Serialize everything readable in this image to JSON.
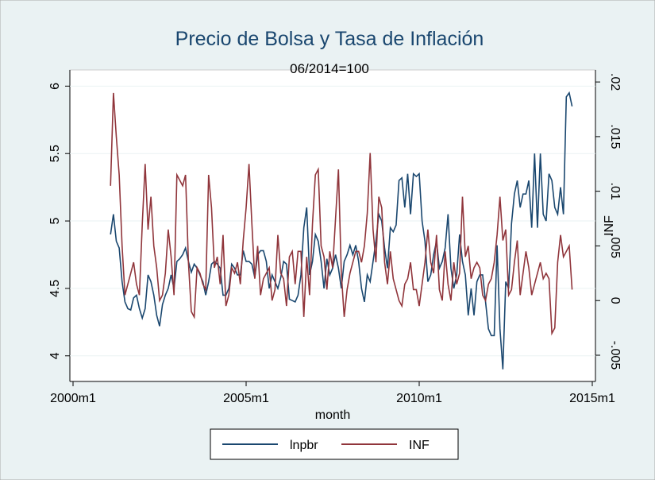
{
  "chart_data": {
    "type": "line",
    "title": "Precio de Bolsa y Tasa de Inflación",
    "subtitle": "06/2014=100",
    "x_label": "month",
    "y2_label": "INF",
    "x": [
      "2001m2",
      "2001m3",
      "2001m4",
      "2001m5",
      "2001m6",
      "2001m7",
      "2001m8",
      "2001m9",
      "2001m10",
      "2001m11",
      "2001m12",
      "2002m1",
      "2002m2",
      "2002m3",
      "2002m4",
      "2002m5",
      "2002m6",
      "2002m7",
      "2002m8",
      "2002m9",
      "2002m10",
      "2002m11",
      "2002m12",
      "2003m1",
      "2003m2",
      "2003m3",
      "2003m4",
      "2003m5",
      "2003m6",
      "2003m7",
      "2003m8",
      "2003m9",
      "2003m10",
      "2003m11",
      "2003m12",
      "2004m1",
      "2004m2",
      "2004m3",
      "2004m4",
      "2004m5",
      "2004m6",
      "2004m7",
      "2004m8",
      "2004m9",
      "2004m10",
      "2004m11",
      "2004m12",
      "2005m1",
      "2005m2",
      "2005m3",
      "2005m4",
      "2005m5",
      "2005m6",
      "2005m7",
      "2005m8",
      "2005m9",
      "2005m10",
      "2005m11",
      "2005m12",
      "2006m1",
      "2006m2",
      "2006m3",
      "2006m4",
      "2006m5",
      "2006m6",
      "2006m7",
      "2006m8",
      "2006m9",
      "2006m10",
      "2006m11",
      "2006m12",
      "2007m1",
      "2007m2",
      "2007m3",
      "2007m4",
      "2007m5",
      "2007m6",
      "2007m7",
      "2007m8",
      "2007m9",
      "2007m10",
      "2007m11",
      "2007m12",
      "2008m1",
      "2008m2",
      "2008m3",
      "2008m4",
      "2008m5",
      "2008m6",
      "2008m7",
      "2008m8",
      "2008m9",
      "2008m10",
      "2008m11",
      "2008m12",
      "2009m1",
      "2009m2",
      "2009m3",
      "2009m4",
      "2009m5",
      "2009m6",
      "2009m7",
      "2009m8",
      "2009m9",
      "2009m10",
      "2009m11",
      "2009m12",
      "2010m1",
      "2010m2",
      "2010m3",
      "2010m4",
      "2010m5",
      "2010m6",
      "2010m7",
      "2010m8",
      "2010m9",
      "2010m10",
      "2010m11",
      "2010m12",
      "2011m1",
      "2011m2",
      "2011m3",
      "2011m4",
      "2011m5",
      "2011m6",
      "2011m7",
      "2011m8",
      "2011m9",
      "2011m10",
      "2011m11",
      "2011m12",
      "2012m1",
      "2012m2",
      "2012m3",
      "2012m4",
      "2012m5",
      "2012m6",
      "2012m7",
      "2012m8",
      "2012m9",
      "2012m10",
      "2012m11",
      "2012m12",
      "2013m1",
      "2013m2",
      "2013m3",
      "2013m4",
      "2013m5",
      "2013m6",
      "2013m7",
      "2013m8",
      "2013m9",
      "2013m10",
      "2013m11",
      "2013m12",
      "2014m1",
      "2014m2",
      "2014m3",
      "2014m4",
      "2014m5",
      "2014m6"
    ],
    "series": [
      {
        "name": "lnpbr",
        "color": "#1a476f",
        "axis": "y",
        "values": [
          4.9,
          5.05,
          4.85,
          4.8,
          4.55,
          4.4,
          4.35,
          4.34,
          4.43,
          4.45,
          4.35,
          4.28,
          4.35,
          4.6,
          4.55,
          4.45,
          4.3,
          4.22,
          4.38,
          4.45,
          4.5,
          4.6,
          4.5,
          4.7,
          4.72,
          4.75,
          4.8,
          4.7,
          4.62,
          4.68,
          4.65,
          4.6,
          4.55,
          4.45,
          4.55,
          4.68,
          4.7,
          4.68,
          4.65,
          4.45,
          4.45,
          4.5,
          4.68,
          4.65,
          4.6,
          4.6,
          4.78,
          4.7,
          4.7,
          4.68,
          4.58,
          4.75,
          4.78,
          4.78,
          4.7,
          4.5,
          4.6,
          4.55,
          4.5,
          4.58,
          4.7,
          4.68,
          4.42,
          4.41,
          4.4,
          4.45,
          4.6,
          4.95,
          5.1,
          4.6,
          4.7,
          4.9,
          4.85,
          4.7,
          4.5,
          4.72,
          4.6,
          4.65,
          4.75,
          4.65,
          4.5,
          4.7,
          4.75,
          4.82,
          4.75,
          4.82,
          4.7,
          4.5,
          4.4,
          4.6,
          4.55,
          4.7,
          4.85,
          5.05,
          5.0,
          4.8,
          4.65,
          4.95,
          4.92,
          4.97,
          5.3,
          5.32,
          5.1,
          5.35,
          5.05,
          5.35,
          5.33,
          5.35,
          5.0,
          4.85,
          4.55,
          4.6,
          4.75,
          4.85,
          4.65,
          4.7,
          4.8,
          5.05,
          4.65,
          4.5,
          4.6,
          4.9,
          4.7,
          4.6,
          4.3,
          4.5,
          4.3,
          4.55,
          4.6,
          4.6,
          4.4,
          4.2,
          4.15,
          4.15,
          4.82,
          4.2,
          3.9,
          4.55,
          4.5,
          4.98,
          5.2,
          5.3,
          5.1,
          5.2,
          5.2,
          5.3,
          4.95,
          5.5,
          4.95,
          5.5,
          5.05,
          5.0,
          5.35,
          5.3,
          5.1,
          5.05,
          5.25,
          5.05,
          5.92,
          5.95,
          5.85
        ]
      },
      {
        "name": "INF",
        "color": "#90353b",
        "axis": "y2",
        "values": [
          0.0105,
          0.019,
          0.015,
          0.0115,
          0.005,
          0.0005,
          0.0015,
          0.0025,
          0.0035,
          0.0015,
          0.0005,
          0.007,
          0.0125,
          0.0065,
          0.0095,
          0.005,
          0.003,
          0,
          0.0005,
          0.0025,
          0.0065,
          0.004,
          0.0005,
          0.0115,
          0.011,
          0.0105,
          0.0115,
          0.0035,
          -0.001,
          -0.0015,
          0.003,
          0.0025,
          0.0015,
          0.001,
          0.0115,
          0.0085,
          0.003,
          0.004,
          0.0015,
          0.006,
          -0.0005,
          0.0005,
          0.003,
          0.0025,
          0.0035,
          0.0015,
          0.0055,
          0.0085,
          0.0125,
          0.007,
          0.002,
          0.005,
          0.0005,
          0.002,
          0.0025,
          0.003,
          0,
          0.001,
          0.006,
          0.0025,
          0.002,
          -0.0005,
          0.004,
          0.0045,
          0.0015,
          0.0045,
          0.0045,
          -0.0015,
          0.004,
          0.0005,
          0.007,
          0.0115,
          0.012,
          0.005,
          0.004,
          0.001,
          0.0045,
          0.003,
          0.0075,
          0.012,
          0.0025,
          -0.0015,
          0.001,
          0.0025,
          0.0035,
          0.0045,
          0.0045,
          0.0035,
          0.005,
          0.008,
          0.0135,
          0.0065,
          0.0035,
          0.0095,
          0.0085,
          0.0035,
          0.0015,
          0.0045,
          0.002,
          0.001,
          0,
          -0.0005,
          0.0015,
          0.002,
          0.0035,
          0.001,
          0.001,
          -0.0005,
          0.0015,
          0.0035,
          0.0065,
          0.0035,
          0.0025,
          0.006,
          0.001,
          0,
          0.0045,
          0.0015,
          0,
          0.0035,
          0.0015,
          0.0025,
          0.0095,
          0.004,
          0.005,
          0.002,
          0.003,
          0.0035,
          0.003,
          0.0005,
          0,
          0.0015,
          0.002,
          0.0035,
          0.006,
          0.0095,
          0.0055,
          0.0065,
          0.0005,
          0.001,
          0.0035,
          0.0055,
          0.0005,
          0.0025,
          0.0045,
          0.003,
          0.0005,
          0.0015,
          0.0025,
          0.0035,
          0.002,
          0.0025,
          0.002,
          -0.003,
          -0.0025,
          0.0035,
          0.006,
          0.004,
          0.0045,
          0.005,
          0.001
        ]
      }
    ],
    "xlim": [
      "2000m1",
      "2015m1"
    ],
    "xticks": [
      "2000m1",
      "2005m1",
      "2010m1",
      "2015m1"
    ],
    "ylim": [
      3.81,
      6.12
    ],
    "yticks": [
      4,
      4.5,
      5,
      5.5,
      6
    ],
    "y2lim": [
      -0.0074,
      0.0211
    ],
    "y2ticks": [
      {
        "value": -0.005,
        "label": "-.005"
      },
      0,
      {
        "value": 0.005,
        "label": ".005"
      },
      {
        "value": 0.01,
        "label": ".01"
      },
      {
        "value": 0.015,
        "label": ".015"
      },
      {
        "value": 0.02,
        "label": ".02"
      }
    ],
    "grid": true,
    "legend": "bottom"
  }
}
